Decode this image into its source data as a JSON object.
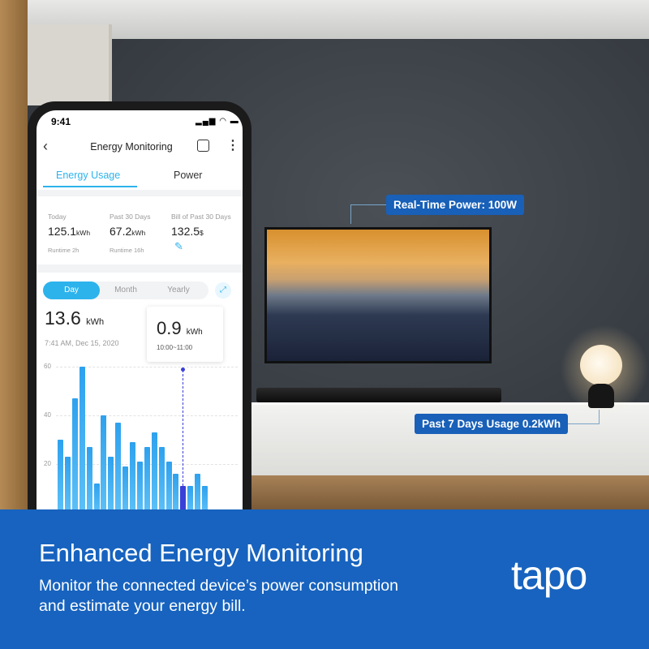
{
  "scene": {
    "callout_power": "Real-Time Power: 100W",
    "callout_usage": "Past 7 Days Usage 0.2kWh"
  },
  "phone": {
    "status_time": "9:41",
    "header_title": "Energy Monitoring",
    "tabs": [
      {
        "label": "Energy Usage",
        "active": true
      },
      {
        "label": "Power",
        "active": false
      }
    ],
    "stats": [
      {
        "label": "Today",
        "value": "125.1",
        "unit": "kWh",
        "sub": "Runtime 2h"
      },
      {
        "label": "Past 30 Days",
        "value": "67.2",
        "unit": "kWh",
        "sub": "Runtime 16h"
      },
      {
        "label": "Bill of Past 30 Days",
        "value": "132.5",
        "unit": "$",
        "sub_icon": "pencil-icon"
      }
    ],
    "period_tabs": [
      {
        "label": "Day",
        "active": true
      },
      {
        "label": "Month",
        "active": false
      },
      {
        "label": "Yearly",
        "active": false
      }
    ],
    "total_value": "13.6",
    "total_unit": "kWh",
    "total_time": "7:41 AM, Dec 15, 2020",
    "tooltip_value": "0.9",
    "tooltip_unit": "kWh",
    "tooltip_range": "10:00~11:00",
    "accent": "#2cb3ec"
  },
  "chart_data": {
    "type": "bar",
    "y_ticks": [
      "60",
      "40",
      "20"
    ],
    "ylim": [
      0,
      60
    ],
    "grid": true,
    "values": [
      30,
      23,
      47,
      60,
      27,
      12,
      40,
      23,
      37,
      19,
      29,
      21,
      27,
      33,
      27,
      21,
      16,
      11,
      11,
      16,
      11
    ],
    "selected_index": 17,
    "colors": {
      "bar": "#3aa8f0",
      "selected": "#3a3fd8"
    }
  },
  "banner": {
    "title": "Enhanced Energy Monitoring",
    "subtitle_line1": "Monitor the connected device’s power consumption",
    "subtitle_line2": "and estimate your energy bill.",
    "logo": "tapo",
    "color": "#1763bf"
  }
}
